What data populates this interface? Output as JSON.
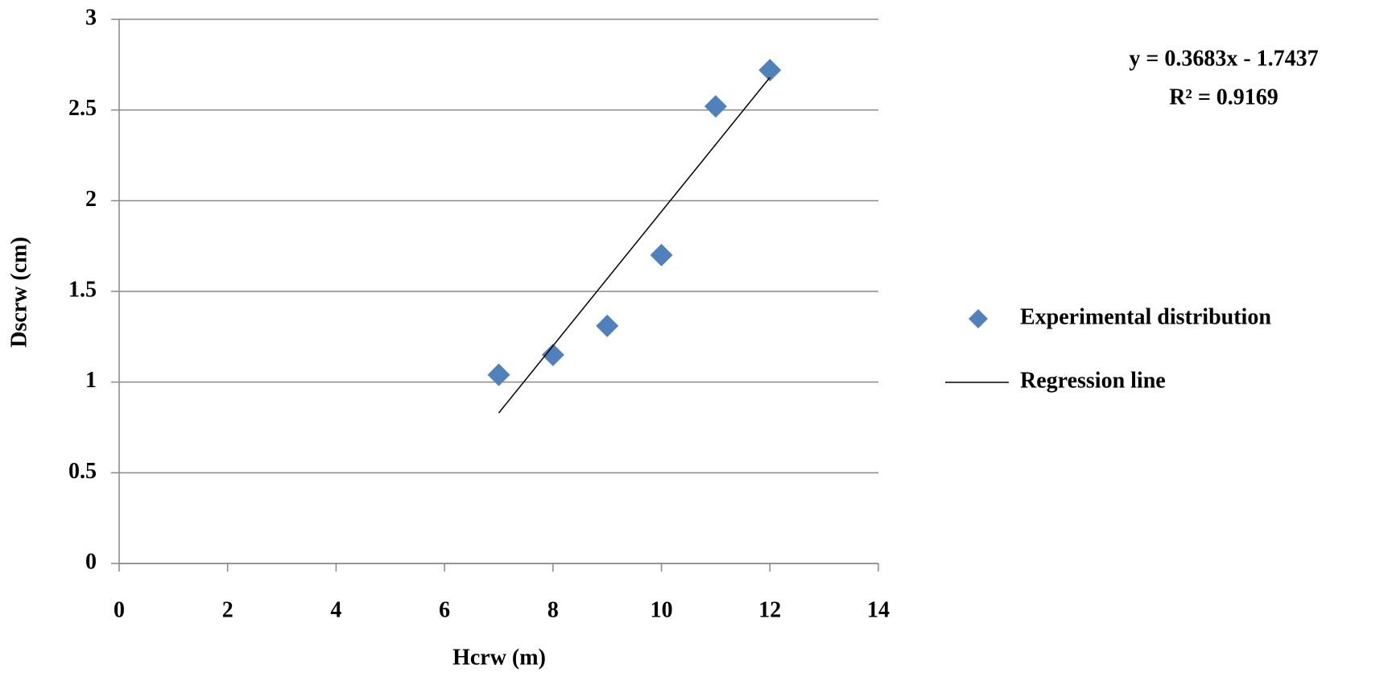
{
  "chart_data": {
    "type": "scatter",
    "x_label": "Hcrw (m)",
    "y_label": "Dscrw (cm)",
    "annotations": [
      "y = 0.3683x - 1.7437",
      "R² = 0.9169"
    ],
    "series": [
      {
        "name": "Experimental distribution",
        "type": "scatter",
        "color": "#4f81bd",
        "x": [
          7,
          8,
          9,
          10,
          11,
          12
        ],
        "values": [
          1.04,
          1.15,
          1.31,
          1.7,
          2.52,
          2.72
        ]
      },
      {
        "name": "Regression line",
        "type": "line",
        "color": "#000000",
        "x": [
          7,
          12
        ],
        "values": [
          0.83,
          2.68
        ]
      }
    ],
    "xlim": [
      0,
      14
    ],
    "ylim": [
      0,
      3
    ],
    "xticks": [
      0,
      2,
      4,
      6,
      8,
      10,
      12,
      14
    ],
    "yticks": [
      0,
      0.5,
      1,
      1.5,
      2,
      2.5,
      3
    ],
    "grid": true,
    "legend": "right"
  }
}
